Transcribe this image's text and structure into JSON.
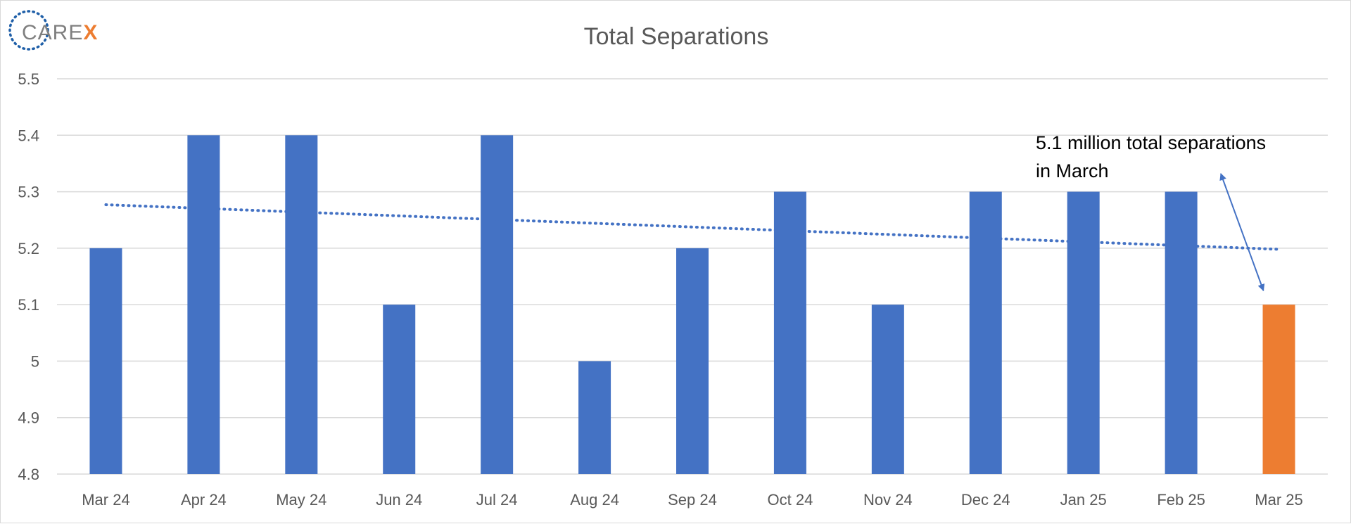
{
  "logo": {
    "text_main": "CARE",
    "text_accent": "X",
    "main_color": "#7f7f7f",
    "accent_color": "#ed7d31",
    "ring_color": "#1f5fa8",
    "icon": "dotted-ring-icon"
  },
  "chart_data": {
    "type": "bar",
    "title": "Total Separations",
    "xlabel": "",
    "ylabel": "",
    "categories": [
      "Mar 24",
      "Apr 24",
      "May 24",
      "Jun 24",
      "Jul 24",
      "Aug 24",
      "Sep 24",
      "Oct 24",
      "Nov 24",
      "Dec 24",
      "Jan 25",
      "Feb 25",
      "Mar 25"
    ],
    "values": [
      5.2,
      5.4,
      5.4,
      5.1,
      5.4,
      5.0,
      5.2,
      5.3,
      5.1,
      5.3,
      5.3,
      5.3,
      5.1
    ],
    "ylim": [
      4.8,
      5.5
    ],
    "yticks": [
      4.8,
      4.9,
      5,
      5.1,
      5.2,
      5.3,
      5.4,
      5.5
    ],
    "ytick_labels": [
      "4.8",
      "4.9",
      "5",
      "5.1",
      "5.2",
      "5.3",
      "5.4",
      "5.5"
    ],
    "grid": true,
    "bar_color": "#4472c4",
    "highlight_color": "#ed7d31",
    "highlight_index": 12,
    "trendline": {
      "style": "dotted",
      "color": "#4472c4",
      "start_value": 5.277,
      "end_value": 5.198
    },
    "annotation": {
      "lines": [
        "5.1 million total separations",
        "in March"
      ],
      "target_category": "Mar 25",
      "target_value": 5.1
    }
  }
}
